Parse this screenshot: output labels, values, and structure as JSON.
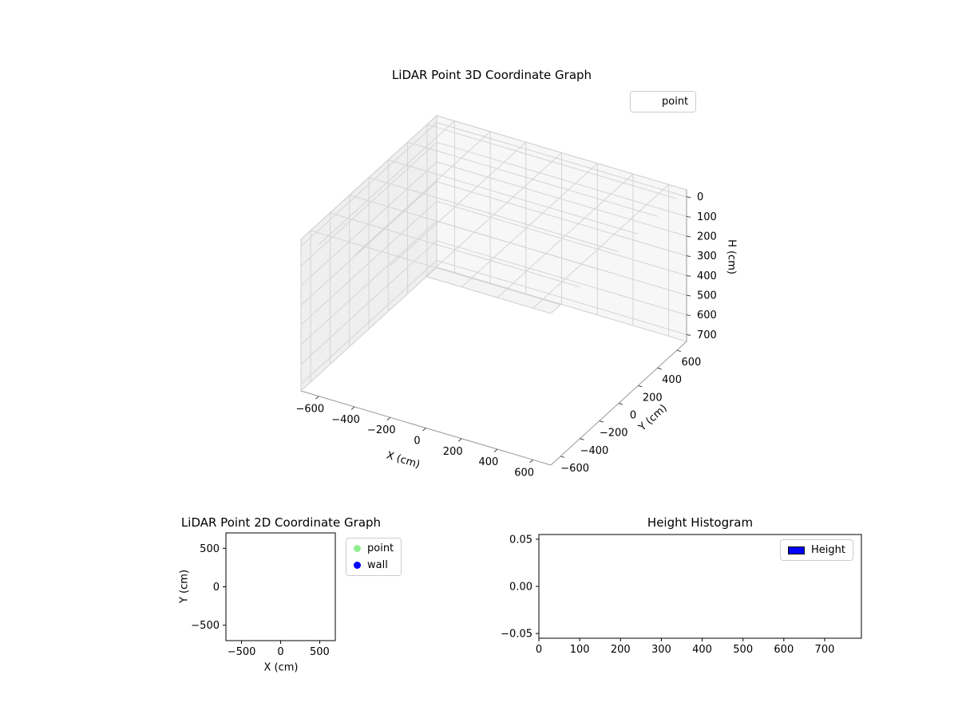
{
  "chart_data": [
    {
      "id": "lidar-3d",
      "type": "scatter3d",
      "title": "LiDAR Point 3D Coordinate Graph",
      "xlabel": "X (cm)",
      "ylabel": "Y (cm)",
      "zlabel": "H (cm)",
      "xlim": [
        -700,
        700
      ],
      "ylim": [
        -700,
        700
      ],
      "zlim": [
        -35,
        735
      ],
      "z_axis_inverted": true,
      "grid": true,
      "xticks": {
        "values": [
          -600,
          -400,
          -200,
          0,
          200,
          400,
          600
        ],
        "labels": [
          "−600",
          "−400",
          "−200",
          "0",
          "200",
          "400",
          "600"
        ]
      },
      "yticks": {
        "values": [
          -600,
          -400,
          -200,
          0,
          200,
          400,
          600
        ],
        "labels": [
          "−600",
          "−400",
          "−200",
          "0",
          "200",
          "400",
          "600"
        ]
      },
      "zticks": {
        "values": [
          0,
          100,
          200,
          300,
          400,
          500,
          600,
          700
        ],
        "labels": [
          "0",
          "100",
          "200",
          "300",
          "400",
          "500",
          "600",
          "700"
        ]
      },
      "legend": [
        {
          "label": "point",
          "marker": "none"
        }
      ],
      "points": []
    },
    {
      "id": "lidar-2d",
      "type": "scatter",
      "title": "LiDAR Point 2D Coordinate Graph",
      "xlabel": "X (cm)",
      "ylabel": "Y (cm)",
      "xlim": [
        -700,
        700
      ],
      "ylim": [
        -700,
        700
      ],
      "grid": false,
      "xticks": {
        "values": [
          -500,
          0,
          500
        ],
        "labels": [
          "−500",
          "0",
          "500"
        ]
      },
      "yticks": {
        "values": [
          500,
          0,
          -500
        ],
        "labels": [
          "500",
          "0",
          "−500"
        ]
      },
      "legend": [
        {
          "label": "point",
          "marker": "circle",
          "color": "#90ee90"
        },
        {
          "label": "wall",
          "marker": "circle",
          "color": "#0000ff"
        }
      ],
      "points": []
    },
    {
      "id": "height-histogram",
      "type": "bar",
      "title": "Height Histogram",
      "xlabel": "",
      "ylabel": "",
      "xlim": [
        0,
        790
      ],
      "ylim": [
        -0.055,
        0.055
      ],
      "grid": false,
      "xticks": {
        "values": [
          0,
          100,
          200,
          300,
          400,
          500,
          600,
          700
        ],
        "labels": [
          "0",
          "100",
          "200",
          "300",
          "400",
          "500",
          "600",
          "700"
        ]
      },
      "yticks": {
        "values": [
          0.05,
          0.0,
          -0.05
        ],
        "labels": [
          "0.05",
          "0.00",
          "−0.05"
        ]
      },
      "legend": [
        {
          "label": "Height",
          "marker": "patch",
          "color": "#0000ff"
        }
      ],
      "values": []
    }
  ]
}
